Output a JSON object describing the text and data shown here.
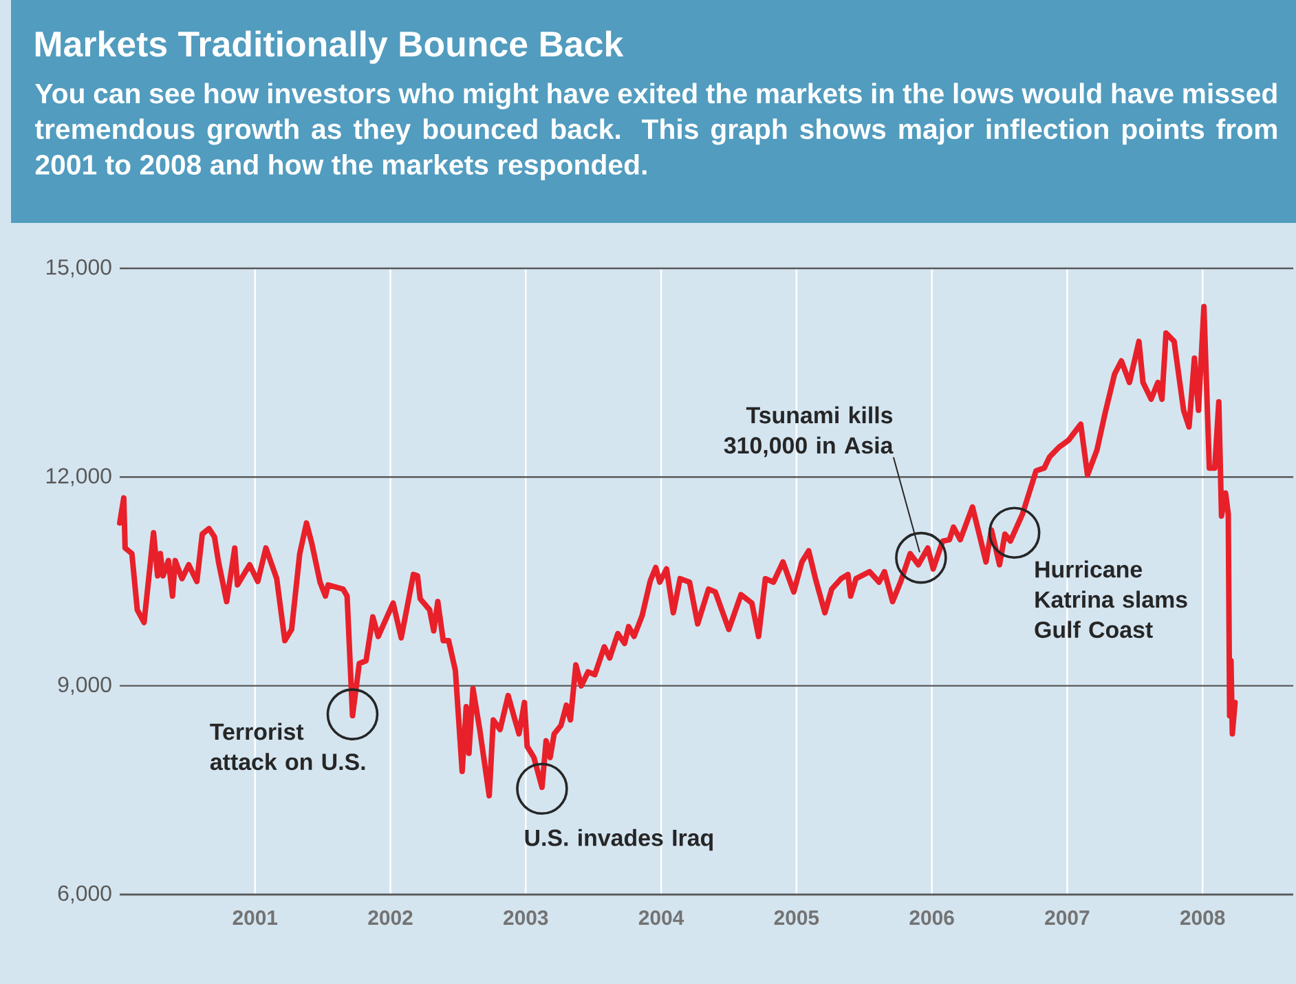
{
  "chart_data": {
    "type": "line",
    "title": "Markets Traditionally Bounce Back",
    "subtitle": "You can see how investors who might have exited the markets in the lows would have missed tremendous growth as they bounced back. This graph shows major inflection points from 2001 to 2008 and how the markets responded.",
    "color": "#e8202a",
    "x": [
      2000.0,
      2000.03,
      2000.04,
      2000.09,
      2000.13,
      2000.18,
      2000.25,
      2000.28,
      2000.3,
      2000.32,
      2000.36,
      2000.39,
      2000.41,
      2000.46,
      2000.51,
      2000.57,
      2000.61,
      2000.66,
      2000.7,
      2000.73,
      2000.79,
      2000.85,
      2000.87,
      2000.96,
      2001.02,
      2001.08,
      2001.16,
      2001.22,
      2001.27,
      2001.33,
      2001.38,
      2001.42,
      2001.48,
      2001.52,
      2001.54,
      2001.65,
      2001.68,
      2001.72,
      2001.77,
      2001.82,
      2001.87,
      2001.91,
      2002.02,
      2002.08,
      2002.17,
      2002.2,
      2002.22,
      2002.29,
      2002.32,
      2002.35,
      2002.39,
      2002.43,
      2002.48,
      2002.53,
      2002.56,
      2002.58,
      2002.61,
      2002.66,
      2002.73,
      2002.76,
      2002.81,
      2002.87,
      2002.92,
      2002.95,
      2002.99,
      2003.01,
      2003.06,
      2003.12,
      2003.15,
      2003.18,
      2003.21,
      2003.26,
      2003.3,
      2003.33,
      2003.37,
      2003.41,
      2003.46,
      2003.51,
      2003.58,
      2003.62,
      2003.68,
      2003.73,
      2003.76,
      2003.8,
      2003.86,
      2003.92,
      2003.96,
      2003.99,
      2004.04,
      2004.09,
      2004.14,
      2004.21,
      2004.27,
      2004.35,
      2004.4,
      2004.5,
      2004.59,
      2004.67,
      2004.72,
      2004.77,
      2004.83,
      2004.9,
      2004.98,
      2005.04,
      2005.09,
      2005.14,
      2005.21,
      2005.26,
      2005.33,
      2005.38,
      2005.4,
      2005.44,
      2005.54,
      2005.61,
      2005.65,
      2005.71,
      2005.77,
      2005.84,
      2005.9,
      2005.97,
      2006.01,
      2006.08,
      2006.13,
      2006.16,
      2006.21,
      2006.3,
      2006.35,
      2006.4,
      2006.44,
      2006.5,
      2006.54,
      2006.58,
      2006.67,
      2006.77,
      2006.83,
      2006.87,
      2006.94,
      2007.01,
      2007.1,
      2007.15,
      2007.22,
      2007.28,
      2007.35,
      2007.4,
      2007.46,
      2007.53,
      2007.56,
      2007.62,
      2007.67,
      2007.7,
      2007.73,
      2007.79,
      2007.86,
      2007.9,
      2007.94,
      2007.97,
      2008.01,
      2008.05,
      2008.09,
      2008.12,
      2008.14,
      2008.17,
      2008.19,
      2008.2,
      2008.21,
      2008.22,
      2008.24
    ],
    "values": [
      11340,
      11700,
      10980,
      10900,
      10090,
      9910,
      11200,
      10580,
      10900,
      10580,
      10800,
      10290,
      10800,
      10540,
      10740,
      10500,
      11180,
      11260,
      11140,
      10780,
      10210,
      10980,
      10450,
      10740,
      10500,
      10980,
      10540,
      9650,
      9810,
      10900,
      11340,
      11040,
      10490,
      10290,
      10450,
      10390,
      10290,
      8570,
      9320,
      9360,
      9990,
      9710,
      10190,
      9690,
      10600,
      10580,
      10250,
      10090,
      9790,
      10210,
      9650,
      9650,
      9220,
      7770,
      8700,
      8030,
      8960,
      8370,
      7420,
      8510,
      8370,
      8860,
      8510,
      8310,
      8760,
      8130,
      7970,
      7540,
      8210,
      7970,
      8310,
      8430,
      8720,
      8510,
      9300,
      9000,
      9200,
      9160,
      9560,
      9400,
      9750,
      9610,
      9850,
      9710,
      10010,
      10510,
      10700,
      10490,
      10680,
      10050,
      10540,
      10490,
      9890,
      10390,
      10350,
      9810,
      10310,
      10190,
      9710,
      10540,
      10490,
      10780,
      10350,
      10780,
      10940,
      10540,
      10050,
      10390,
      10540,
      10600,
      10290,
      10540,
      10640,
      10490,
      10640,
      10210,
      10500,
      10900,
      10740,
      10980,
      10680,
      11080,
      11100,
      11280,
      11100,
      11570,
      11180,
      10780,
      11240,
      10740,
      11180,
      11080,
      11470,
      12090,
      12130,
      12290,
      12430,
      12530,
      12760,
      12030,
      12390,
      12920,
      13480,
      13670,
      13360,
      13950,
      13360,
      13120,
      13360,
      13120,
      14070,
      13950,
      12960,
      12720,
      13710,
      12960,
      14450,
      12130,
      12130,
      13080,
      11440,
      11770,
      11470,
      8570,
      9360,
      8310,
      8760
    ],
    "xlim": [
      2000,
      2008.67
    ],
    "ylim": [
      6000,
      15000
    ],
    "xticks": [
      2001,
      2002,
      2003,
      2004,
      2005,
      2006,
      2007,
      2008
    ],
    "yticks": [
      {
        "value": 6000,
        "label": "6,000"
      },
      {
        "value": 9000,
        "label": "9,000"
      },
      {
        "value": 12000,
        "label": "12,000"
      },
      {
        "value": 15000,
        "label": "15,000"
      }
    ],
    "grid": true,
    "annotations": [
      {
        "text": "Terrorist attack on U.S.",
        "x": 2001.72,
        "y": 8590
      },
      {
        "text": "U.S. invades Iraq",
        "x": 2003.12,
        "y": 7520
      },
      {
        "text": "Tsunami kills 310,000 in Asia",
        "x": 2005.92,
        "y": 10840
      },
      {
        "text": "Hurricane Katrina slams Gulf Coast",
        "x": 2006.61,
        "y": 11200
      }
    ]
  }
}
